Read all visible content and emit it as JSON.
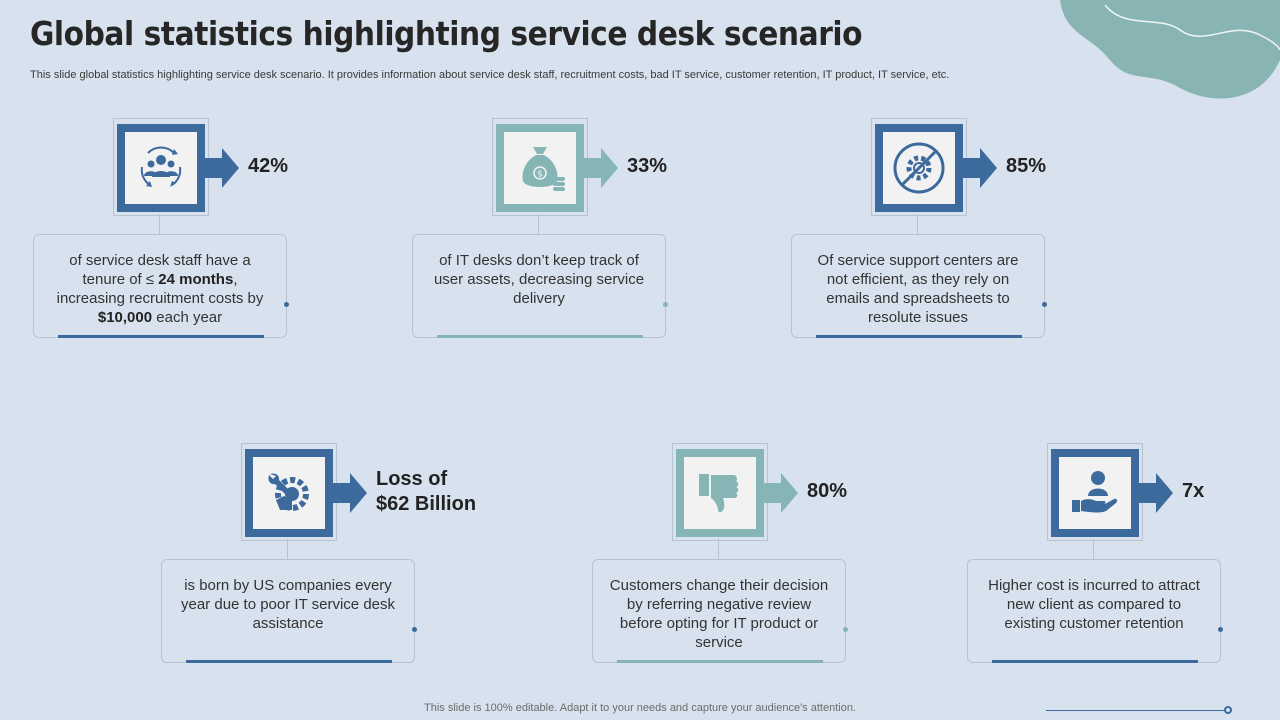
{
  "page": {
    "title": "Global statistics highlighting service desk scenario",
    "subtitle": "This slide global statistics highlighting service desk scenario. It provides information about service desk staff, recruitment costs, bad IT service, customer retention, IT product, IT service, etc.",
    "footer": "This slide is 100% editable. Adapt it to your needs and capture your audience's attention."
  },
  "colors": {
    "background": "#d7e2ee",
    "blue": "#3d6a9c",
    "teal": "#86b5b6",
    "blob": "#88b5b4"
  },
  "stats": [
    {
      "icon": "people-cycle-icon",
      "value": "42%",
      "desc_pre": "of service desk staff have a tenure  of ≤ ",
      "desc_bold1": "24 months",
      "desc_mid": ", increasing recruitment  costs by ",
      "desc_bold2": "$10,000",
      "desc_post": " each year"
    },
    {
      "icon": "money-bag-icon",
      "value": "33%",
      "desc": "of IT desks don’t keep track of user assets, decreasing service delivery"
    },
    {
      "icon": "no-gear-icon",
      "value": "85%",
      "desc": "Of service support centers are not efficient, as they rely on emails and spreadsheets to resolute issues"
    },
    {
      "icon": "wrench-gear-icon",
      "value_line1": "Loss of",
      "value_line2": "$62 Billion",
      "desc": "is born by US companies every year due to poor IT service desk assistance"
    },
    {
      "icon": "thumbs-down-icon",
      "value": "80%",
      "desc": "Customers change their decision by referring negative review before opting for IT product or service"
    },
    {
      "icon": "customer-hand-icon",
      "value": "7x",
      "desc": "Higher cost is incurred to attract new client as compared to existing customer retention"
    }
  ]
}
